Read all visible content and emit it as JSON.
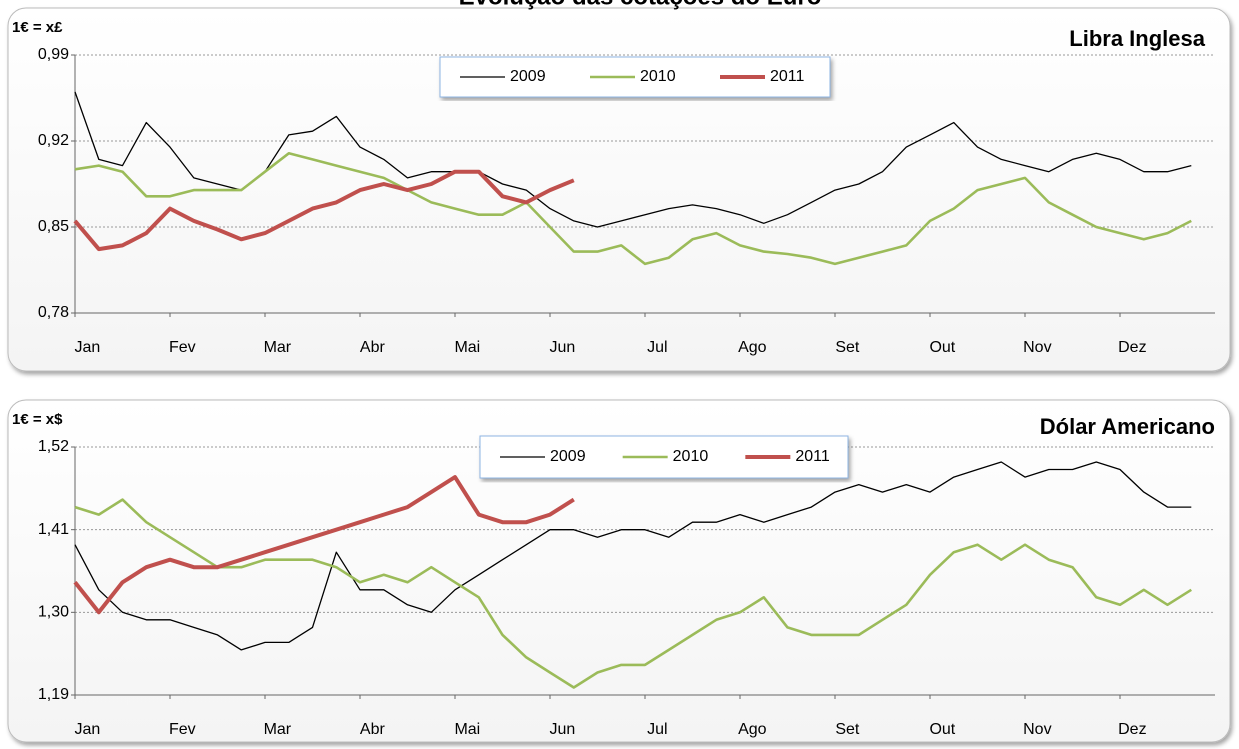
{
  "title": "Evolução das cotações do Euro",
  "chart_data": [
    {
      "type": "line",
      "title": "Libra Inglesa",
      "ylabel": "1€ = x£",
      "x": [
        0,
        0.25,
        0.5,
        0.75,
        1,
        1.25,
        1.5,
        1.75,
        2,
        2.25,
        2.5,
        2.75,
        3,
        3.25,
        3.5,
        3.75,
        4,
        4.25,
        4.5,
        4.75,
        5,
        5.25,
        5.5,
        5.75,
        6,
        6.25,
        6.5,
        6.75,
        7,
        7.25,
        7.5,
        7.75,
        8,
        8.25,
        8.5,
        8.75,
        9,
        9.25,
        9.5,
        9.75,
        10,
        10.25,
        10.5,
        10.75,
        11,
        11.25,
        11.5,
        11.75
      ],
      "xlim": [
        0,
        12
      ],
      "xticks": [
        {
          "value": 0,
          "label": "Jan"
        },
        {
          "value": 1,
          "label": "Fev"
        },
        {
          "value": 2,
          "label": "Mar"
        },
        {
          "value": 3,
          "label": "Abr"
        },
        {
          "value": 4,
          "label": "Mai"
        },
        {
          "value": 5,
          "label": "Jun"
        },
        {
          "value": 6,
          "label": "Jul"
        },
        {
          "value": 7,
          "label": "Ago"
        },
        {
          "value": 8,
          "label": "Set"
        },
        {
          "value": 9,
          "label": "Out"
        },
        {
          "value": 10,
          "label": "Nov"
        },
        {
          "value": 11,
          "label": "Dez"
        }
      ],
      "ylim": [
        0.78,
        0.99
      ],
      "yticks": [
        {
          "value": 0.78,
          "label": "0,78"
        },
        {
          "value": 0.85,
          "label": "0,85"
        },
        {
          "value": 0.92,
          "label": "0,92"
        },
        {
          "value": 0.99,
          "label": "0,99"
        }
      ],
      "grid": true,
      "series": [
        {
          "name": "2009",
          "color": "#000000",
          "values": [
            0.96,
            0.905,
            0.9,
            0.935,
            0.915,
            0.89,
            0.885,
            0.88,
            0.895,
            0.925,
            0.928,
            0.94,
            0.915,
            0.905,
            0.89,
            0.895,
            0.895,
            0.895,
            0.885,
            0.88,
            0.865,
            0.855,
            0.85,
            0.855,
            0.86,
            0.865,
            0.868,
            0.865,
            0.86,
            0.853,
            0.86,
            0.87,
            0.88,
            0.885,
            0.895,
            0.915,
            0.925,
            0.935,
            0.915,
            0.905,
            0.9,
            0.895,
            0.905,
            0.91,
            0.905,
            0.895,
            0.895,
            0.9
          ]
        },
        {
          "name": "2010",
          "color": "#9bbb59",
          "values": [
            0.897,
            0.9,
            0.895,
            0.875,
            0.875,
            0.88,
            0.88,
            0.88,
            0.895,
            0.91,
            0.905,
            0.9,
            0.895,
            0.89,
            0.88,
            0.87,
            0.865,
            0.86,
            0.86,
            0.87,
            0.85,
            0.83,
            0.83,
            0.835,
            0.82,
            0.825,
            0.84,
            0.845,
            0.835,
            0.83,
            0.828,
            0.825,
            0.82,
            0.825,
            0.83,
            0.835,
            0.855,
            0.865,
            0.88,
            0.885,
            0.89,
            0.87,
            0.86,
            0.85,
            0.845,
            0.84,
            0.845,
            0.855
          ]
        },
        {
          "name": "2011",
          "color": "#c0504d",
          "values": [
            0.855,
            0.832,
            0.835,
            0.845,
            0.865,
            0.855,
            0.848,
            0.84,
            0.845,
            0.855,
            0.865,
            0.87,
            0.88,
            0.885,
            0.88,
            0.885,
            0.895,
            0.895,
            0.875,
            0.87,
            0.88,
            0.888,
            null,
            null,
            null,
            null,
            null,
            null,
            null,
            null,
            null,
            null,
            null,
            null,
            null,
            null,
            null,
            null,
            null,
            null,
            null,
            null,
            null,
            null,
            null,
            null,
            null,
            null
          ]
        }
      ]
    },
    {
      "type": "line",
      "title": "Dólar Americano",
      "ylabel": "1€ = x$",
      "x": [
        0,
        0.25,
        0.5,
        0.75,
        1,
        1.25,
        1.5,
        1.75,
        2,
        2.25,
        2.5,
        2.75,
        3,
        3.25,
        3.5,
        3.75,
        4,
        4.25,
        4.5,
        4.75,
        5,
        5.25,
        5.5,
        5.75,
        6,
        6.25,
        6.5,
        6.75,
        7,
        7.25,
        7.5,
        7.75,
        8,
        8.25,
        8.5,
        8.75,
        9,
        9.25,
        9.5,
        9.75,
        10,
        10.25,
        10.5,
        10.75,
        11,
        11.25,
        11.5,
        11.75
      ],
      "xlim": [
        0,
        12
      ],
      "xticks": [
        {
          "value": 0,
          "label": "Jan"
        },
        {
          "value": 1,
          "label": "Fev"
        },
        {
          "value": 2,
          "label": "Mar"
        },
        {
          "value": 3,
          "label": "Abr"
        },
        {
          "value": 4,
          "label": "Mai"
        },
        {
          "value": 5,
          "label": "Jun"
        },
        {
          "value": 6,
          "label": "Jul"
        },
        {
          "value": 7,
          "label": "Ago"
        },
        {
          "value": 8,
          "label": "Set"
        },
        {
          "value": 9,
          "label": "Out"
        },
        {
          "value": 10,
          "label": "Nov"
        },
        {
          "value": 11,
          "label": "Dez"
        }
      ],
      "ylim": [
        1.19,
        1.52
      ],
      "yticks": [
        {
          "value": 1.19,
          "label": "1,19"
        },
        {
          "value": 1.3,
          "label": "1,30"
        },
        {
          "value": 1.41,
          "label": "1,41"
        },
        {
          "value": 1.52,
          "label": "1,52"
        }
      ],
      "grid": true,
      "series": [
        {
          "name": "2009",
          "color": "#000000",
          "values": [
            1.39,
            1.33,
            1.3,
            1.29,
            1.29,
            1.28,
            1.27,
            1.25,
            1.26,
            1.26,
            1.28,
            1.38,
            1.33,
            1.33,
            1.31,
            1.3,
            1.33,
            1.35,
            1.37,
            1.39,
            1.41,
            1.41,
            1.4,
            1.41,
            1.41,
            1.4,
            1.42,
            1.42,
            1.43,
            1.42,
            1.43,
            1.44,
            1.46,
            1.47,
            1.46,
            1.47,
            1.46,
            1.48,
            1.49,
            1.5,
            1.48,
            1.49,
            1.49,
            1.5,
            1.49,
            1.46,
            1.44,
            1.44
          ]
        },
        {
          "name": "2010",
          "color": "#9bbb59",
          "values": [
            1.44,
            1.43,
            1.45,
            1.42,
            1.4,
            1.38,
            1.36,
            1.36,
            1.37,
            1.37,
            1.37,
            1.36,
            1.34,
            1.35,
            1.34,
            1.36,
            1.34,
            1.32,
            1.27,
            1.24,
            1.22,
            1.2,
            1.22,
            1.23,
            1.23,
            1.25,
            1.27,
            1.29,
            1.3,
            1.32,
            1.28,
            1.27,
            1.27,
            1.27,
            1.29,
            1.31,
            1.35,
            1.38,
            1.39,
            1.37,
            1.39,
            1.37,
            1.36,
            1.32,
            1.31,
            1.33,
            1.31,
            1.33
          ]
        },
        {
          "name": "2011",
          "color": "#c0504d",
          "values": [
            1.34,
            1.3,
            1.34,
            1.36,
            1.37,
            1.36,
            1.36,
            1.37,
            1.38,
            1.39,
            1.4,
            1.41,
            1.42,
            1.43,
            1.44,
            1.46,
            1.48,
            1.43,
            1.42,
            1.42,
            1.43,
            1.45,
            null,
            null,
            null,
            null,
            null,
            null,
            null,
            null,
            null,
            null,
            null,
            null,
            null,
            null,
            null,
            null,
            null,
            null,
            null,
            null,
            null,
            null,
            null,
            null,
            null,
            null
          ]
        }
      ]
    }
  ]
}
